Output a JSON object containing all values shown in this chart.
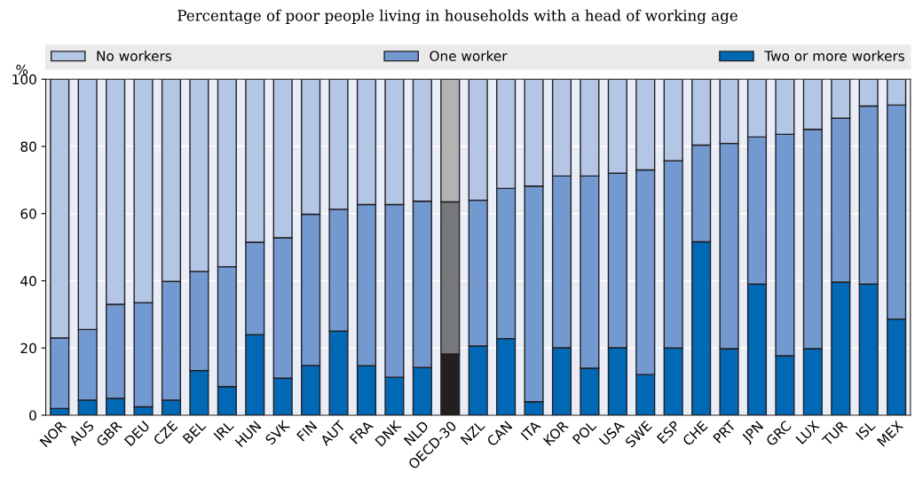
{
  "chart_data": {
    "type": "bar",
    "title": "Percentage of poor people living in households with a head of working age",
    "ylabel": "%",
    "stacked": true,
    "categories": [
      "NOR",
      "AUS",
      "GBR",
      "DEU",
      "CZE",
      "BEL",
      "IRL",
      "HUN",
      "SVK",
      "FIN",
      "AUT",
      "FRA",
      "DNK",
      "NLD",
      "OECD-30",
      "NZL",
      "CAN",
      "ITA",
      "KOR",
      "POL",
      "USA",
      "SWE",
      "ESP",
      "CHE",
      "PRT",
      "JPN",
      "GRC",
      "LUX",
      "TUR",
      "ISL",
      "MEX"
    ],
    "series": [
      {
        "name": "Two or more workers",
        "color": "#0068b4",
        "colors": [
          "#0068b4",
          "#0068b4",
          "#0068b4",
          "#0068b4",
          "#0068b4",
          "#0068b4",
          "#0068b4",
          "#0068b4",
          "#0068b4",
          "#0068b4",
          "#0068b4",
          "#0068b4",
          "#0068b4",
          "#0068b4",
          "#231f20",
          "#0068b4",
          "#0068b4",
          "#0068b4",
          "#0068b4",
          "#0068b4",
          "#0068b4",
          "#0068b4",
          "#0068b4",
          "#0068b4",
          "#0068b4",
          "#0068b4",
          "#0068b4",
          "#0068b4",
          "#0068b4",
          "#0068b4",
          "#0068b4"
        ],
        "values": [
          2,
          4.5,
          5,
          2.5,
          4.5,
          13.3,
          8.5,
          24,
          11,
          14.8,
          25,
          14.7,
          11.3,
          14.2,
          18.2,
          20.6,
          22.8,
          4,
          20.1,
          14,
          20.1,
          12.1,
          20,
          51.6,
          19.8,
          39,
          17.7,
          19.8,
          39.6,
          39,
          28.6
        ]
      },
      {
        "name": "One worker",
        "color": "#7399d1",
        "colors": [
          "#7399d1",
          "#7399d1",
          "#7399d1",
          "#7399d1",
          "#7399d1",
          "#7399d1",
          "#7399d1",
          "#7399d1",
          "#7399d1",
          "#7399d1",
          "#7399d1",
          "#7399d1",
          "#7399d1",
          "#7399d1",
          "#77787b",
          "#7399d1",
          "#7399d1",
          "#7399d1",
          "#7399d1",
          "#7399d1",
          "#7399d1",
          "#7399d1",
          "#7399d1",
          "#7399d1",
          "#7399d1",
          "#7399d1",
          "#7399d1",
          "#7399d1",
          "#7399d1",
          "#7399d1",
          "#7399d1"
        ],
        "values": [
          21,
          21,
          28,
          31,
          35.3,
          29.5,
          35.7,
          27.5,
          41.8,
          45,
          36.3,
          48,
          51.4,
          49.5,
          45.3,
          43.4,
          44.7,
          64.2,
          51.1,
          57.2,
          51.9,
          60.9,
          55.7,
          28.8,
          61.1,
          43.8,
          65.9,
          65.3,
          48.8,
          53,
          63.7
        ]
      },
      {
        "name": "No workers",
        "color": "#b4c6e6",
        "colors": [
          "#b4c6e6",
          "#b4c6e6",
          "#b4c6e6",
          "#b4c6e6",
          "#b4c6e6",
          "#b4c6e6",
          "#b4c6e6",
          "#b4c6e6",
          "#b4c6e6",
          "#b4c6e6",
          "#b4c6e6",
          "#b4c6e6",
          "#b4c6e6",
          "#b4c6e6",
          "#b3b3b3",
          "#b4c6e6",
          "#b4c6e6",
          "#b4c6e6",
          "#b4c6e6",
          "#b4c6e6",
          "#b4c6e6",
          "#b4c6e6",
          "#b4c6e6",
          "#b4c6e6",
          "#b4c6e6",
          "#b4c6e6",
          "#b4c6e6",
          "#b4c6e6",
          "#b4c6e6",
          "#b4c6e6",
          "#b4c6e6"
        ],
        "values": [
          77,
          74.5,
          67,
          66.5,
          60.2,
          57.2,
          55.8,
          48.5,
          47.2,
          40.2,
          38.7,
          37.3,
          37.3,
          36.3,
          36.5,
          36,
          32.5,
          31.8,
          28.8,
          28.8,
          28,
          27,
          24.3,
          19.6,
          19.1,
          17.2,
          16.4,
          14.9,
          11.6,
          8,
          7.7
        ]
      }
    ],
    "ylim": [
      0,
      100
    ],
    "yticks": [
      0,
      20,
      40,
      60,
      80,
      100
    ],
    "grid": "y",
    "legend": "top"
  }
}
